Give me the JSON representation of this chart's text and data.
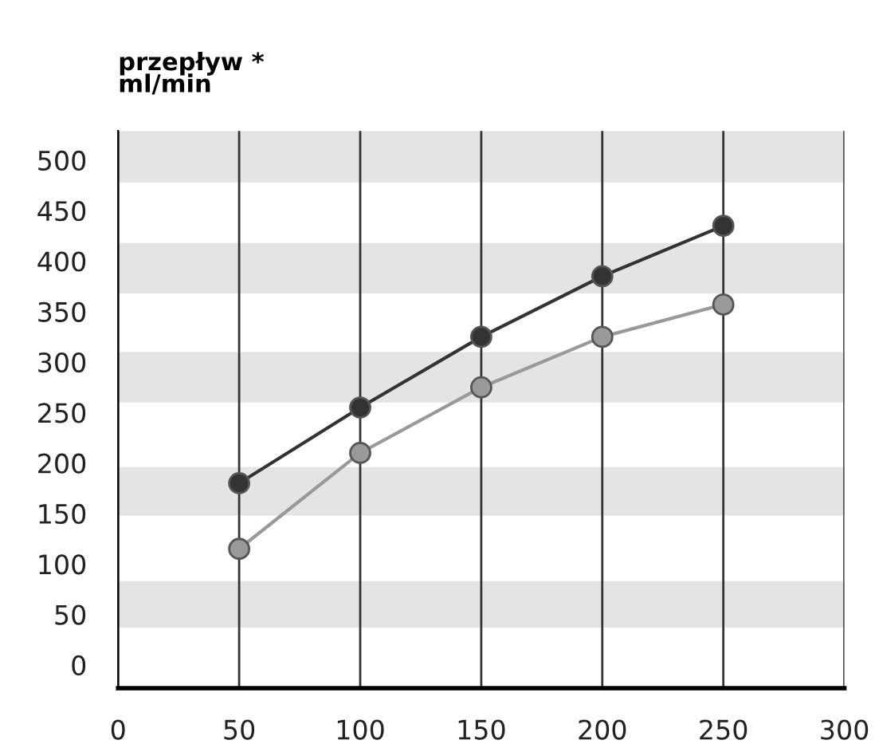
{
  "chart_data": {
    "type": "line",
    "ylabel": "przepływ *\nml/min",
    "x": [
      50,
      100,
      150,
      200,
      250
    ],
    "series": [
      {
        "color": "#333333",
        "values": [
          180,
          255,
          325,
          385,
          435
        ]
      },
      {
        "color": "#999999",
        "values": [
          115,
          210,
          275,
          325,
          357
        ]
      }
    ],
    "xlim": [
      0,
      300
    ],
    "xticks": [
      0,
      50,
      100,
      150,
      200,
      250,
      300
    ],
    "ylim": [
      -23,
      529
    ],
    "yticks": [
      0,
      50,
      100,
      150,
      200,
      250,
      300,
      350,
      400,
      450,
      500
    ],
    "grid": "x",
    "marker": "circle",
    "line_style": "solid",
    "legend": false,
    "bands": [
      {
        "axis": "y",
        "from": 37,
        "to": 83,
        "color": "#e4e4e4"
      },
      {
        "axis": "y",
        "from": 148,
        "to": 196,
        "color": "#e4e4e4"
      },
      {
        "axis": "y",
        "from": 260,
        "to": 310,
        "color": "#e4e4e4"
      },
      {
        "axis": "y",
        "from": 368,
        "to": 418,
        "color": "#e4e4e4"
      },
      {
        "axis": "y",
        "from": 478,
        "to": 529,
        "color": "#e4e4e4"
      }
    ]
  }
}
